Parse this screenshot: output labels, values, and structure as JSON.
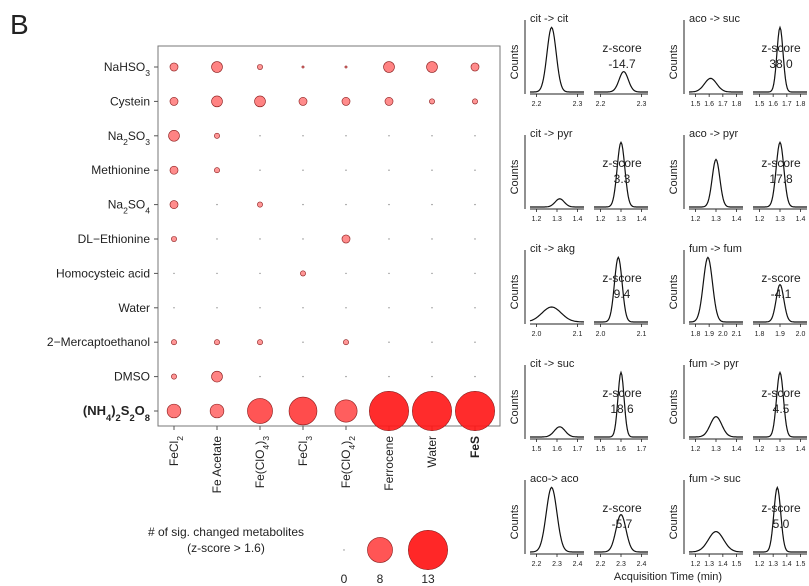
{
  "panel_label": "B",
  "chart_data": [
    {
      "type": "scatter",
      "title": "",
      "rows": [
        {
          "pre": "NaHSO",
          "sub": "3",
          "post": "",
          "bold": false
        },
        {
          "pre": "Cystein",
          "sub": "",
          "post": "",
          "bold": false
        },
        {
          "pre": "Na",
          "sub": "2",
          "post": "SO",
          "sub2": "3",
          "bold": false
        },
        {
          "pre": "Methionine",
          "sub": "",
          "post": "",
          "bold": false
        },
        {
          "pre": "Na",
          "sub": "2",
          "post": "SO",
          "sub2": "4",
          "bold": false
        },
        {
          "pre": "DL−Ethionine",
          "sub": "",
          "post": "",
          "bold": false
        },
        {
          "pre": "Homocysteic acid",
          "sub": "",
          "post": "",
          "bold": false
        },
        {
          "pre": "Water",
          "sub": "",
          "post": "",
          "bold": false
        },
        {
          "pre": "2−Mercaptoethanol",
          "sub": "",
          "post": "",
          "bold": false
        },
        {
          "pre": "DMSO",
          "sub": "",
          "post": "",
          "bold": false
        },
        {
          "pre": "(NH",
          "sub": "4",
          "post": ")",
          "sub2": "2",
          "post2": "S",
          "sub3": "2",
          "post3": "O",
          "sub4": "8",
          "bold": true
        }
      ],
      "columns": [
        {
          "pre": "FeCl",
          "sub": "2",
          "post": "",
          "bold": false
        },
        {
          "pre": "Fe Acetate",
          "sub": "",
          "post": "",
          "bold": false
        },
        {
          "pre": "Fe(ClO",
          "sub": "4",
          "post": ")",
          "sub2": "3",
          "bold": false
        },
        {
          "pre": "FeCl",
          "sub": "3",
          "post": "",
          "bold": false
        },
        {
          "pre": "Fe(ClO",
          "sub": "4",
          "post": ")",
          "sub2": "2",
          "bold": false
        },
        {
          "pre": "Ferrocene",
          "sub": "",
          "post": "",
          "bold": false
        },
        {
          "pre": "Water",
          "sub": "",
          "post": "",
          "bold": false
        },
        {
          "pre": "FeS",
          "sub": "",
          "post": "",
          "bold": true
        }
      ],
      "values": [
        [
          2,
          3,
          1,
          0.5,
          0.5,
          3,
          3,
          2
        ],
        [
          2,
          3,
          3,
          2,
          2,
          2,
          1,
          1
        ],
        [
          3,
          1,
          0,
          0,
          0,
          0,
          0,
          0
        ],
        [
          2,
          1,
          0,
          0,
          0,
          0,
          0,
          0
        ],
        [
          2,
          0,
          1,
          0,
          0,
          0,
          0,
          0
        ],
        [
          1,
          0,
          0,
          0,
          2,
          0,
          0,
          0
        ],
        [
          0,
          0,
          0,
          1,
          0,
          0,
          0,
          0
        ],
        [
          0,
          0,
          0,
          0,
          0,
          0,
          0,
          0
        ],
        [
          1,
          1,
          1,
          0,
          1,
          0,
          0,
          0
        ],
        [
          1,
          3,
          0,
          0,
          0,
          0,
          0,
          0
        ],
        [
          4,
          4,
          8,
          9,
          7,
          13,
          13,
          13
        ]
      ],
      "legend": {
        "title_line1": "# of sig. changed metabolites",
        "title_line2": "(z-score > 1.6)",
        "values": [
          0,
          8,
          13
        ],
        "labels": [
          "0",
          "8",
          "13"
        ]
      },
      "colors": {
        "fill": "#ff1a1a",
        "edge": "#8a1a1a",
        "frame": "#777777"
      }
    },
    {
      "type": "line",
      "ylabel": "Counts",
      "xlabel": "Acquisition Time (min)",
      "panels": [
        {
          "title": "cit -> cit",
          "left": {
            "xticks": [
              "2.2",
              "2.3"
            ],
            "peak": 0.4,
            "width": 0.12,
            "height": 0.95
          },
          "z_line1": "z-score",
          "z_line2": "-14.7",
          "right": {
            "xticks": [
              "2.2",
              "2.3"
            ],
            "peak": 0.55,
            "width": 0.12,
            "height": 0.3
          }
        },
        {
          "title": "aco -> suc",
          "left": {
            "xticks": [
              "1.5",
              "1.6",
              "1.7",
              "1.8"
            ],
            "peak": 0.4,
            "width": 0.16,
            "height": 0.2
          },
          "z_line1": "z-score",
          "z_line2": "38.0",
          "right": {
            "xticks": [
              "1.5",
              "1.6",
              "1.7",
              "1.8"
            ],
            "peak": 0.5,
            "width": 0.08,
            "height": 0.95
          }
        },
        {
          "title": "cit -> pyr",
          "left": {
            "xticks": [
              "1.2",
              "1.3",
              "1.4"
            ],
            "peak": 0.55,
            "width": 0.12,
            "height": 0.12
          },
          "z_line1": "z-score",
          "z_line2": "3.3",
          "right": {
            "xticks": [
              "1.2",
              "1.3",
              "1.4"
            ],
            "peak": 0.5,
            "width": 0.1,
            "height": 0.95
          }
        },
        {
          "title": "aco -> pyr",
          "left": {
            "xticks": [
              "1.2",
              "1.3",
              "1.4"
            ],
            "peak": 0.5,
            "width": 0.1,
            "height": 0.7
          },
          "z_line1": "z-score",
          "z_line2": "17.8",
          "right": {
            "xticks": [
              "1.2",
              "1.3",
              "1.4"
            ],
            "peak": 0.5,
            "width": 0.1,
            "height": 0.95
          }
        },
        {
          "title": "cit -> akg",
          "left": {
            "xticks": [
              "2.0",
              "2.1"
            ],
            "peak": 0.4,
            "width": 0.25,
            "height": 0.22
          },
          "z_line1": "z-score",
          "z_line2": "9.4",
          "right": {
            "xticks": [
              "2.0",
              "2.1"
            ],
            "peak": 0.45,
            "width": 0.1,
            "height": 0.95
          }
        },
        {
          "title": "fum -> fum",
          "left": {
            "xticks": [
              "1.8",
              "1.9",
              "2.0",
              "2.1"
            ],
            "peak": 0.35,
            "width": 0.12,
            "height": 0.95
          },
          "z_line1": "z-score",
          "z_line2": "-4.1",
          "right": {
            "xticks": [
              "1.8",
              "1.9",
              "2.0"
            ],
            "peak": 0.5,
            "width": 0.1,
            "height": 0.55
          }
        },
        {
          "title": "cit -> suc",
          "left": {
            "xticks": [
              "1.5",
              "1.6",
              "1.7"
            ],
            "peak": 0.55,
            "width": 0.14,
            "height": 0.15
          },
          "z_line1": "z-score",
          "z_line2": "18.6",
          "right": {
            "xticks": [
              "1.5",
              "1.6",
              "1.7"
            ],
            "peak": 0.5,
            "width": 0.08,
            "height": 0.95
          }
        },
        {
          "title": "fum -> pyr",
          "left": {
            "xticks": [
              "1.2",
              "1.3",
              "1.4"
            ],
            "peak": 0.5,
            "width": 0.15,
            "height": 0.3
          },
          "z_line1": "z-score",
          "z_line2": "4.5",
          "right": {
            "xticks": [
              "1.2",
              "1.3",
              "1.4"
            ],
            "peak": 0.5,
            "width": 0.09,
            "height": 0.95
          }
        },
        {
          "title": "aco-> aco",
          "left": {
            "xticks": [
              "2.2",
              "2.3",
              "2.4"
            ],
            "peak": 0.4,
            "width": 0.14,
            "height": 0.95
          },
          "z_line1": "z-score",
          "z_line2": "-5.7",
          "right": {
            "xticks": [
              "2.2",
              "2.3",
              "2.4"
            ],
            "peak": 0.5,
            "width": 0.13,
            "height": 0.55
          }
        },
        {
          "title": "fum -> suc",
          "left": {
            "xticks": [
              "1.2",
              "1.3",
              "1.4",
              "1.5"
            ],
            "peak": 0.5,
            "width": 0.2,
            "height": 0.3
          },
          "z_line1": "z-score",
          "z_line2": "5.0",
          "right": {
            "xticks": [
              "1.2",
              "1.3",
              "1.4",
              "1.5"
            ],
            "peak": 0.45,
            "width": 0.09,
            "height": 0.95
          }
        }
      ]
    }
  ]
}
